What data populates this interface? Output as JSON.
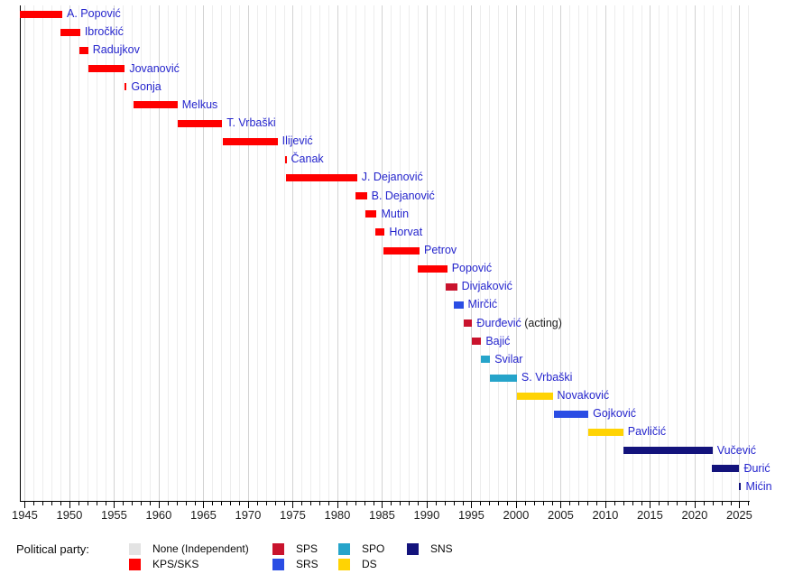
{
  "chart_data": {
    "type": "gantt-timeline",
    "x_axis": {
      "min": 1944.4,
      "max": 2026.05,
      "tick_interval": 5,
      "minor_tick_interval": 1,
      "grid": true,
      "tick_labels": [
        1945,
        1950,
        1955,
        1960,
        1965,
        1970,
        1975,
        1980,
        1985,
        1990,
        1995,
        2000,
        2005,
        2010,
        2015,
        2020,
        2025
      ]
    },
    "legend": {
      "title": "Political party:",
      "position": "bottom",
      "entries": [
        {
          "label": "None (Independent)",
          "color": "#e3e3e3"
        },
        {
          "label": "KPS/SKS",
          "color": "#ff0000"
        },
        {
          "label": "SPS",
          "color": "#c9132d"
        },
        {
          "label": "SRS",
          "color": "#2a4de4"
        },
        {
          "label": "SPO",
          "color": "#26a4ca"
        },
        {
          "label": "DS",
          "color": "#ffd303"
        },
        {
          "label": "SNS",
          "color": "#13137c"
        }
      ]
    },
    "rows": [
      {
        "name": "A. Popović",
        "party": "KPS/SKS",
        "start": 1944.4,
        "end": 1949.2
      },
      {
        "name": "Ibročkić",
        "party": "KPS/SKS",
        "start": 1949.0,
        "end": 1951.2
      },
      {
        "name": "Radujkov",
        "party": "KPS/SKS",
        "start": 1951.1,
        "end": 1952.1
      },
      {
        "name": "Jovanović",
        "party": "KPS/SKS",
        "start": 1952.1,
        "end": 1956.2
      },
      {
        "name": "Gonja",
        "party": "KPS/SKS",
        "start": 1956.2,
        "end": 1956.4
      },
      {
        "name": "Melkus",
        "party": "KPS/SKS",
        "start": 1957.2,
        "end": 1962.1
      },
      {
        "name": "T. Vrbaški",
        "party": "KPS/SKS",
        "start": 1962.1,
        "end": 1967.1
      },
      {
        "name": "Ilijević",
        "party": "KPS/SKS",
        "start": 1967.2,
        "end": 1973.3
      },
      {
        "name": "Čanak",
        "party": "KPS/SKS",
        "start": 1974.1,
        "end": 1974.3
      },
      {
        "name": "J. Dejanović",
        "party": "KPS/SKS",
        "start": 1974.2,
        "end": 1982.2
      },
      {
        "name": "B. Dejanović",
        "party": "KPS/SKS",
        "start": 1982.0,
        "end": 1983.3
      },
      {
        "name": "Mutin",
        "party": "KPS/SKS",
        "start": 1983.1,
        "end": 1984.4
      },
      {
        "name": "Horvat",
        "party": "KPS/SKS",
        "start": 1984.2,
        "end": 1985.3
      },
      {
        "name": "Petrov",
        "party": "KPS/SKS",
        "start": 1985.2,
        "end": 1989.2
      },
      {
        "name": "Popović",
        "party": "KPS/SKS",
        "start": 1989.0,
        "end": 1992.3
      },
      {
        "name": "Divjaković",
        "party": "SPS",
        "start": 1992.1,
        "end": 1993.4
      },
      {
        "name": "Mirčić",
        "party": "SRS",
        "start": 1993.0,
        "end": 1994.1
      },
      {
        "name": "Đurđević",
        "suffix": " (acting)",
        "party": "SPS",
        "start": 1994.1,
        "end": 1995.1
      },
      {
        "name": "Bajić",
        "party": "SPS",
        "start": 1995.1,
        "end": 1996.1
      },
      {
        "name": "Svilar",
        "party": "SPO",
        "start": 1996.1,
        "end": 1997.1
      },
      {
        "name": "S. Vrbaški",
        "party": "SPO",
        "start": 1997.1,
        "end": 2000.1
      },
      {
        "name": "Novaković",
        "party": "DS",
        "start": 2000.1,
        "end": 2004.1
      },
      {
        "name": "Gojković",
        "party": "SRS",
        "start": 2004.2,
        "end": 2008.1
      },
      {
        "name": "Pavličić",
        "party": "DS",
        "start": 2008.1,
        "end": 2012.0
      },
      {
        "name": "Vučević",
        "party": "SNS",
        "start": 2012.0,
        "end": 2022.0
      },
      {
        "name": "Đurić",
        "party": "SNS",
        "start": 2021.9,
        "end": 2025.0
      },
      {
        "name": "Mićin",
        "party": "SNS",
        "start": 2025.0,
        "end": 2025.2
      }
    ]
  }
}
